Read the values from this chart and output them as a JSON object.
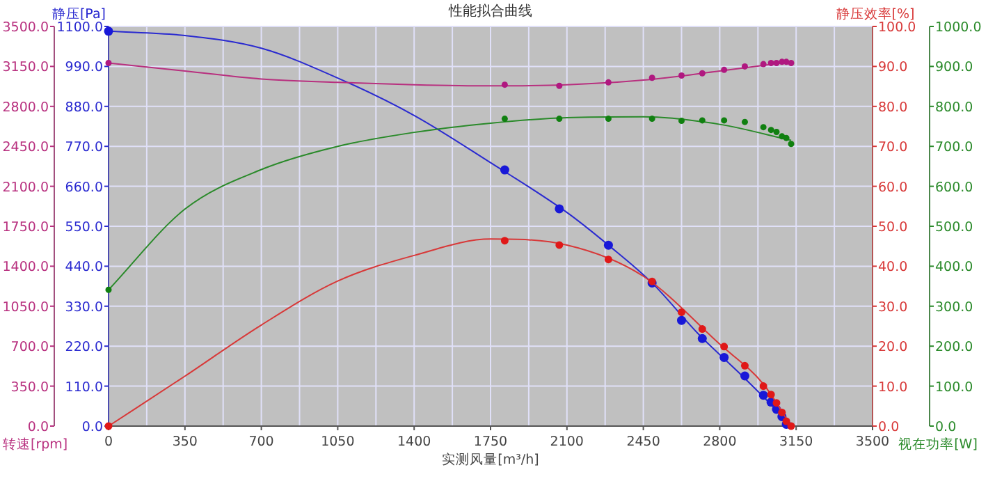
{
  "chart_data": [
    {
      "type": "scatter",
      "title": "性能拟合曲线",
      "xlabel": "实测风量[m³/h]",
      "ylabel": "静压[Pa]",
      "y2label": "静压效率[%]",
      "y3label": "视在功率[W]",
      "grid": true,
      "marker": "circle",
      "xlim": [
        0,
        3500
      ],
      "xticks": [
        0,
        350,
        700,
        1050,
        1400,
        1750,
        2100,
        2450,
        2800,
        3150,
        3500
      ],
      "ylim": [
        0,
        1100
      ],
      "yticks": [
        {
          "value": 0,
          "label": "0.0"
        },
        {
          "value": 110,
          "label": "110.0"
        },
        {
          "value": 220,
          "label": "220.0"
        },
        {
          "value": 330,
          "label": "330.0"
        },
        {
          "value": 440,
          "label": "440.0"
        },
        {
          "value": 550,
          "label": "550.0"
        },
        {
          "value": 660,
          "label": "660.0"
        },
        {
          "value": 770,
          "label": "770.0"
        },
        {
          "value": 880,
          "label": "880.0"
        },
        {
          "value": 990,
          "label": "990.0"
        },
        {
          "value": 1100,
          "label": "1100.0"
        }
      ],
      "y2lim": [
        0,
        100
      ],
      "y2ticks": [
        {
          "value": 0,
          "label": "0.0"
        },
        {
          "value": 10,
          "label": "10.0"
        },
        {
          "value": 20,
          "label": "20.0"
        },
        {
          "value": 30,
          "label": "30.0"
        },
        {
          "value": 40,
          "label": "40.0"
        },
        {
          "value": 50,
          "label": "50.0"
        },
        {
          "value": 60,
          "label": "60.0"
        },
        {
          "value": 70,
          "label": "70.0"
        },
        {
          "value": 80,
          "label": "80.0"
        },
        {
          "value": 90,
          "label": "90.0"
        },
        {
          "value": 100,
          "label": "100.0"
        }
      ],
      "y3lim": [
        0,
        1000
      ],
      "y3ticks": [
        {
          "value": 0,
          "label": "0.0"
        },
        {
          "value": 100,
          "label": "100.0"
        },
        {
          "value": 200,
          "label": "200.0"
        },
        {
          "value": 300,
          "label": "300.0"
        },
        {
          "value": 400,
          "label": "400.0"
        },
        {
          "value": 500,
          "label": "500.0"
        },
        {
          "value": 600,
          "label": "600.0"
        },
        {
          "value": 700,
          "label": "700.0"
        },
        {
          "value": 800,
          "label": "800.0"
        },
        {
          "value": 900,
          "label": "900.0"
        },
        {
          "value": 1000,
          "label": "1000.0"
        }
      ],
      "series": [
        {
          "type": "line",
          "marker": "none",
          "color": "#2a2ad0",
          "x": [
            0,
            350,
            700,
            1050,
            1400,
            1750,
            2100,
            2290,
            2490,
            2700,
            2900,
            3050,
            3127
          ],
          "values": [
            1087,
            1075,
            1040,
            958,
            855,
            725,
            588,
            498,
            394,
            255,
            140,
            50,
            0
          ]
        },
        {
          "type": "scatter",
          "color": "#1818d8",
          "x": [
            0,
            1815,
            2065,
            2290,
            2490,
            2625,
            2720,
            2820,
            2915,
            3000,
            3035,
            3060,
            3085,
            3105
          ],
          "values": [
            1087,
            705,
            598,
            498,
            394,
            291,
            241,
            189,
            138,
            85,
            66,
            46,
            26,
            5
          ]
        },
        {
          "type": "line",
          "marker": "none",
          "axis": "y2",
          "color": "#d83838",
          "x": [
            0,
            350,
            700,
            1050,
            1400,
            1750,
            2100,
            2450,
            2800,
            3000,
            3127
          ],
          "values": [
            0,
            12.5,
            25.3,
            36.3,
            42.7,
            46.8,
            45.3,
            37.5,
            20.5,
            10.5,
            0
          ]
        },
        {
          "type": "scatter",
          "axis": "y2",
          "color": "#e01818",
          "x": [
            0,
            1815,
            2065,
            2290,
            2490,
            2625,
            2720,
            2820,
            2915,
            3000,
            3035,
            3060,
            3085,
            3105,
            3127
          ],
          "values": [
            0,
            46.4,
            45.3,
            41.7,
            36.2,
            28.5,
            24.3,
            19.9,
            15.1,
            10.0,
            7.9,
            5.8,
            3.4,
            1.2,
            0
          ]
        },
        {
          "type": "line",
          "marker": "none",
          "axis": "y3",
          "color": "#2a8a2a",
          "x": [
            0,
            350,
            700,
            1050,
            1400,
            1750,
            2100,
            2450,
            2800,
            3127
          ],
          "values": [
            341,
            543,
            642,
            700,
            735,
            758,
            772,
            774,
            755,
            715
          ]
        },
        {
          "type": "scatter",
          "axis": "y3",
          "color": "#108010",
          "x": [
            0,
            1815,
            2065,
            2290,
            2490,
            2625,
            2720,
            2820,
            2915,
            3000,
            3035,
            3060,
            3085,
            3105,
            3127
          ],
          "values": [
            341,
            769,
            769,
            769,
            769,
            764,
            765,
            765,
            761,
            748,
            741,
            736,
            725,
            721,
            706
          ]
        }
      ]
    },
    {
      "type": "scatter",
      "ylabel": "转速[rpm]",
      "tick_labels": "y",
      "marker": "circle",
      "xlim": [
        0,
        3500
      ],
      "ylim": [
        0,
        3500
      ],
      "yticks": [
        {
          "value": 0,
          "label": "0.0"
        },
        {
          "value": 350,
          "label": "350.0"
        },
        {
          "value": 700,
          "label": "700.0"
        },
        {
          "value": 1050,
          "label": "1050.0"
        },
        {
          "value": 1400,
          "label": "1400.0"
        },
        {
          "value": 1750,
          "label": "1750.0"
        },
        {
          "value": 2100,
          "label": "2100.0"
        },
        {
          "value": 2450,
          "label": "2450.0"
        },
        {
          "value": 2800,
          "label": "2800.0"
        },
        {
          "value": 3150,
          "label": "3150.0"
        },
        {
          "value": 3500,
          "label": "3500.0"
        }
      ],
      "series": [
        {
          "type": "line",
          "marker": "none",
          "color": "#b8307f",
          "x": [
            0,
            350,
            700,
            1050,
            1400,
            1750,
            2100,
            2450,
            2800,
            3127
          ],
          "values": [
            3180,
            3110,
            3040,
            3010,
            2990,
            2980,
            2990,
            3030,
            3110,
            3190
          ]
        },
        {
          "type": "scatter",
          "color": "#b01880",
          "x": [
            0,
            1815,
            2065,
            2290,
            2490,
            2625,
            2720,
            2820,
            2915,
            3000,
            3035,
            3060,
            3085,
            3105,
            3127
          ],
          "values": [
            3180,
            2990,
            2980,
            3010,
            3050,
            3070,
            3090,
            3120,
            3150,
            3170,
            3180,
            3180,
            3190,
            3190,
            3180
          ]
        }
      ]
    }
  ]
}
